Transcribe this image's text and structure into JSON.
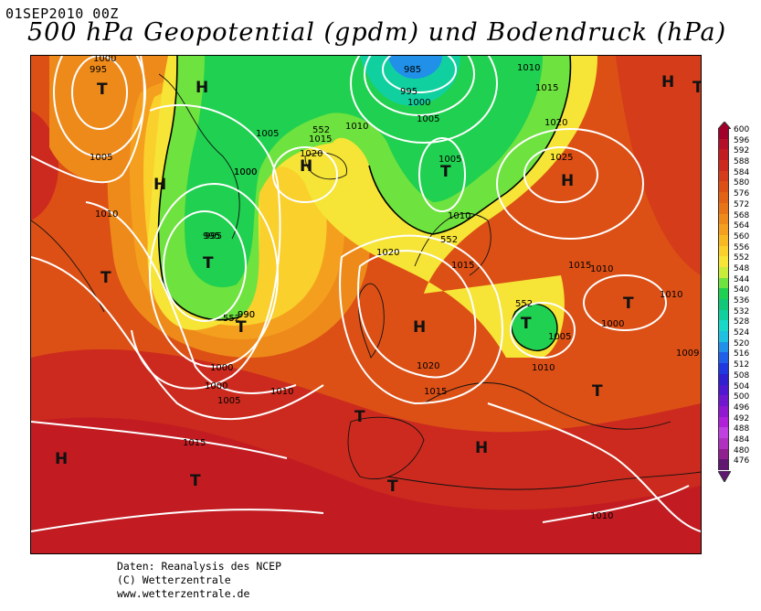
{
  "header": {
    "datetime": "01SEP2010 00Z",
    "title": "500 hPa Geopotential (gpdm) und Bodendruck (hPa)"
  },
  "credits": {
    "line1": "Daten: Reanalysis des NCEP",
    "line2": "(C) Wetterzentrale",
    "line3": "www.wetterzentrale.de"
  },
  "colorbar": {
    "labels": [
      "600",
      "596",
      "592",
      "588",
      "584",
      "580",
      "576",
      "572",
      "568",
      "564",
      "560",
      "556",
      "552",
      "548",
      "544",
      "540",
      "536",
      "532",
      "528",
      "524",
      "520",
      "516",
      "512",
      "508",
      "504",
      "500",
      "496",
      "492",
      "488",
      "484",
      "480",
      "476"
    ],
    "colors": [
      "#a0002a",
      "#b3102a",
      "#c21c22",
      "#cc2a1e",
      "#d43c1a",
      "#dc5016",
      "#e26216",
      "#e87418",
      "#ee8a1a",
      "#f4a01e",
      "#f8b824",
      "#fad02c",
      "#f6e436",
      "#c8ec3a",
      "#6ee23e",
      "#20d050",
      "#10c878",
      "#10d0a0",
      "#18d8c8",
      "#20c0e0",
      "#2090e8",
      "#2060e8",
      "#2038e0",
      "#3020d0",
      "#5018d0",
      "#7018d0",
      "#9018d0",
      "#b020d8",
      "#c040e0",
      "#b030c0",
      "#902090",
      "#601870"
    ]
  },
  "map": {
    "isobar_labels": [
      "1000",
      "995",
      "1005",
      "1010",
      "1015",
      "995",
      "1000",
      "1005",
      "990",
      "985",
      "995",
      "1000",
      "1005",
      "1010",
      "1015",
      "1020",
      "1010",
      "1015",
      "1020",
      "1025",
      "1000",
      "995",
      "990",
      "1000",
      "1005",
      "1010",
      "1015",
      "1020",
      "1005",
      "1000",
      "1010",
      "1005",
      "1010",
      "1015",
      "1010",
      "1020",
      "1015",
      "1010",
      "1000",
      "1009",
      "1010"
    ],
    "height_labels": [
      "552",
      "552",
      "552",
      "552"
    ],
    "pressure_centers": [
      "T",
      "H",
      "H",
      "T",
      "T",
      "T",
      "H",
      "T",
      "H",
      "T",
      "T",
      "H",
      "H",
      "H",
      "T",
      "T",
      "H",
      "T",
      "T",
      "T"
    ]
  }
}
